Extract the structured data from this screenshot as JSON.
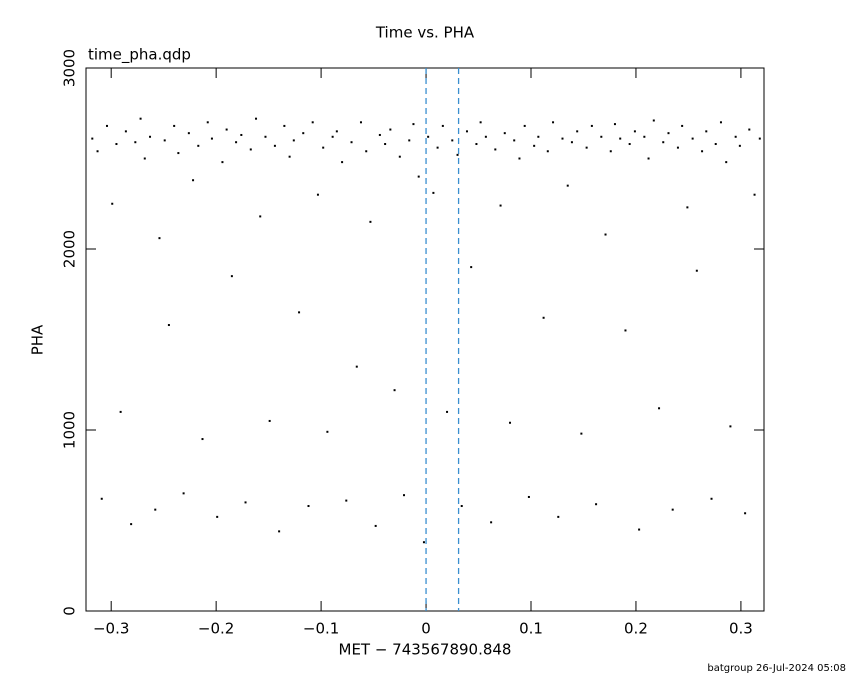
{
  "chart_data": {
    "type": "scatter",
    "title": "Time vs. PHA",
    "subtitle": "time_pha.qdp",
    "x_label": "MET − 743567890.848",
    "y_label": "PHA",
    "footer": "batgroup 26-Jul-2024 05:08",
    "color": "#000000",
    "vlines": [
      0,
      0.031
    ],
    "vline_color": "#3a8fd0",
    "xlim": [
      -0.324,
      0.322
    ],
    "ylim": [
      0,
      3000
    ],
    "xticks": [
      {
        "value": -0.3,
        "label": "−0.3"
      },
      {
        "value": -0.2,
        "label": "−0.2"
      },
      {
        "value": -0.1,
        "label": "−0.1"
      },
      0,
      0.1,
      0.2,
      0.3
    ],
    "yticks": [
      0,
      1000,
      2000,
      3000
    ],
    "x": [
      -0.318,
      -0.313,
      -0.309,
      -0.304,
      -0.299,
      -0.295,
      -0.291,
      -0.286,
      -0.281,
      -0.277,
      -0.272,
      -0.268,
      -0.263,
      -0.258,
      -0.254,
      -0.249,
      -0.245,
      -0.24,
      -0.236,
      -0.231,
      -0.226,
      -0.222,
      -0.217,
      -0.213,
      -0.208,
      -0.204,
      -0.199,
      -0.194,
      -0.19,
      -0.185,
      -0.181,
      -0.176,
      -0.172,
      -0.167,
      -0.162,
      -0.158,
      -0.153,
      -0.149,
      -0.144,
      -0.14,
      -0.135,
      -0.13,
      -0.126,
      -0.121,
      -0.117,
      -0.112,
      -0.108,
      -0.103,
      -0.098,
      -0.094,
      -0.089,
      -0.085,
      -0.08,
      -0.076,
      -0.071,
      -0.066,
      -0.062,
      -0.057,
      -0.053,
      -0.048,
      -0.044,
      -0.039,
      -0.034,
      -0.03,
      -0.025,
      -0.021,
      -0.016,
      -0.012,
      -0.007,
      -0.002,
      0.002,
      0.007,
      0.011,
      0.016,
      0.02,
      0.025,
      0.03,
      0.034,
      0.039,
      0.043,
      0.048,
      0.052,
      0.057,
      0.062,
      0.066,
      0.071,
      0.075,
      0.08,
      0.084,
      0.089,
      0.094,
      0.098,
      0.103,
      0.107,
      0.112,
      0.116,
      0.121,
      0.126,
      0.13,
      0.135,
      0.139,
      0.144,
      0.148,
      0.153,
      0.158,
      0.162,
      0.167,
      0.171,
      0.176,
      0.18,
      0.185,
      0.19,
      0.194,
      0.199,
      0.203,
      0.208,
      0.212,
      0.217,
      0.222,
      0.226,
      0.231,
      0.235,
      0.24,
      0.244,
      0.249,
      0.254,
      0.258,
      0.263,
      0.267,
      0.272,
      0.276,
      0.281,
      0.286,
      0.29,
      0.295,
      0.299,
      0.304,
      0.308,
      0.313,
      0.318
    ],
    "values": [
      2610,
      2540,
      620,
      2680,
      2250,
      2580,
      1100,
      2650,
      480,
      2590,
      2720,
      2500,
      2620,
      560,
      2060,
      2600,
      1580,
      2680,
      2530,
      650,
      2640,
      2380,
      2570,
      950,
      2700,
      2610,
      520,
      2480,
      2660,
      1850,
      2590,
      2630,
      600,
      2550,
      2720,
      2180,
      2620,
      1050,
      2570,
      440,
      2680,
      2510,
      2600,
      1650,
      2640,
      580,
      2700,
      2300,
      2560,
      990,
      2620,
      2650,
      2480,
      610,
      2590,
      1350,
      2700,
      2540,
      2150,
      470,
      2630,
      2580,
      2660,
      1220,
      2510,
      640,
      2600,
      2690,
      2400,
      380,
      2620,
      2310,
      2560,
      2680,
      1100,
      2600,
      2520,
      580,
      2650,
      1900,
      2580,
      2700,
      2620,
      490,
      2550,
      2240,
      2640,
      1040,
      2600,
      2500,
      2680,
      630,
      2570,
      2620,
      1620,
      2540,
      2700,
      520,
      2610,
      2350,
      2590,
      2650,
      980,
      2560,
      2680,
      590,
      2620,
      2080,
      2540,
      2690,
      2610,
      1550,
      2580,
      2650,
      450,
      2620,
      2500,
      2710,
      1120,
      2590,
      2640,
      560,
      2560,
      2680,
      2230,
      2610,
      1880,
      2540,
      2650,
      620,
      2580,
      2700,
      2480,
      1020,
      2620,
      2570,
      540,
      2660,
      2300,
      2610
    ]
  }
}
